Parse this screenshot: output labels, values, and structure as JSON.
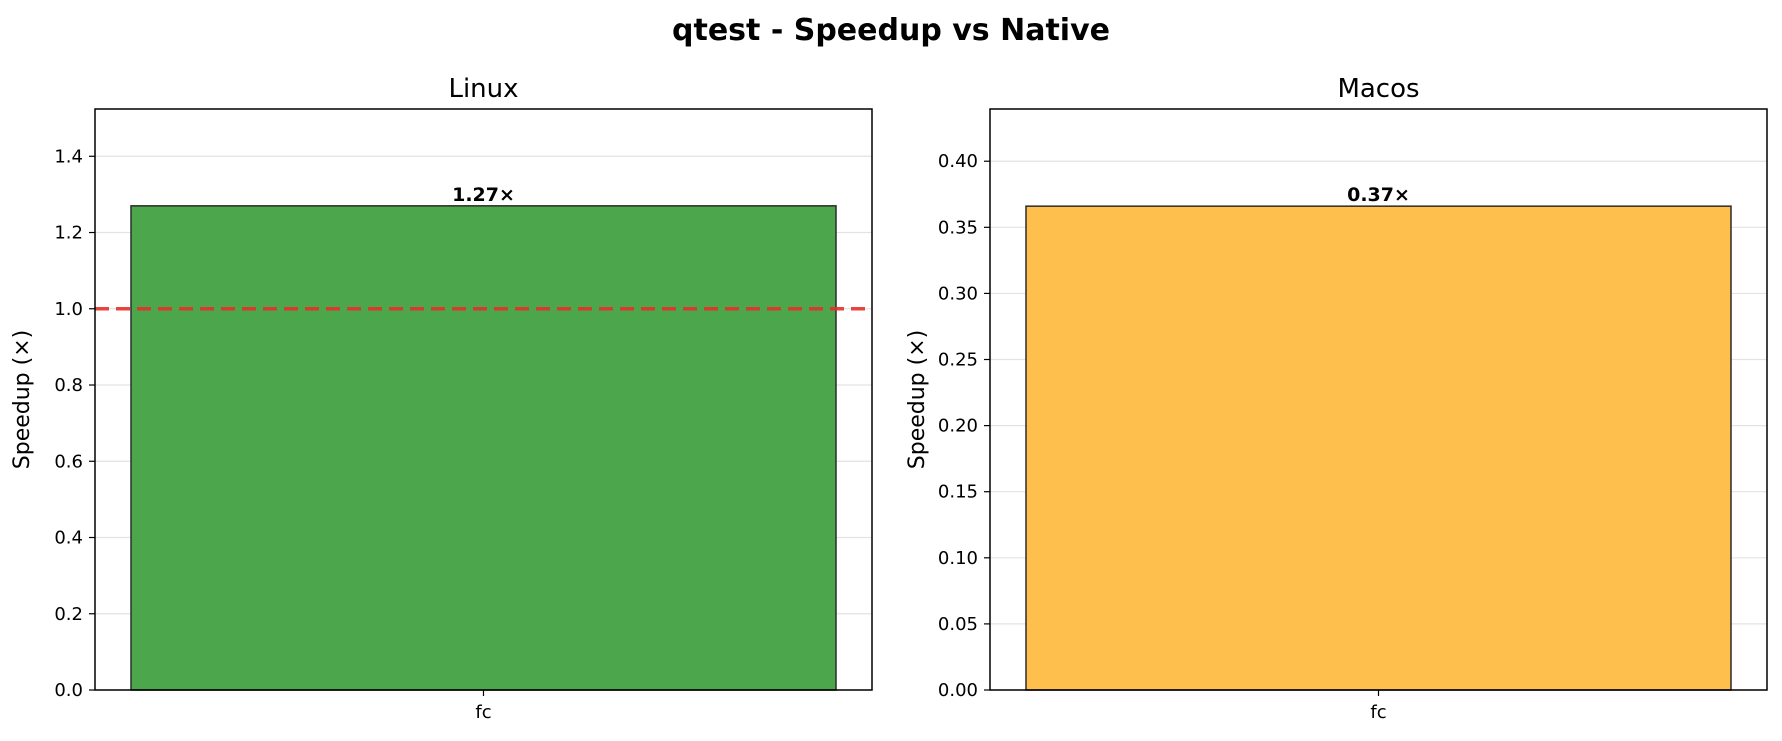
{
  "figure": {
    "title": "qtest - Speedup vs Native"
  },
  "chart_data": [
    {
      "type": "bar",
      "title": "Linux",
      "xlabel": "",
      "ylabel": "Speedup (×)",
      "categories": [
        "fc"
      ],
      "values": [
        1.27
      ],
      "value_labels": [
        "1.27×"
      ],
      "ylim": [
        0,
        1.524
      ],
      "yticks": [
        0.0,
        0.2,
        0.4,
        0.6,
        0.8,
        1.0,
        1.2,
        1.4
      ],
      "ytick_labels": [
        "0.0",
        "0.2",
        "0.4",
        "0.6",
        "0.8",
        "1.0",
        "1.2",
        "1.4"
      ],
      "reference_line": {
        "y": 1.0,
        "style": "dashed",
        "color": "#e8302b"
      },
      "bar_color": "#4ca64c",
      "grid": "y",
      "legend": "none"
    },
    {
      "type": "bar",
      "title": "Macos",
      "xlabel": "",
      "ylabel": "Speedup (×)",
      "categories": [
        "fc"
      ],
      "values": [
        0.366
      ],
      "value_labels": [
        "0.37×"
      ],
      "ylim": [
        0,
        0.4395
      ],
      "yticks": [
        0.0,
        0.05,
        0.1,
        0.15,
        0.2,
        0.25,
        0.3,
        0.35,
        0.4
      ],
      "ytick_labels": [
        "0.00",
        "0.05",
        "0.10",
        "0.15",
        "0.20",
        "0.25",
        "0.30",
        "0.35",
        "0.40"
      ],
      "bar_color": "#ffbf4d",
      "grid": "y",
      "legend": "none"
    }
  ]
}
